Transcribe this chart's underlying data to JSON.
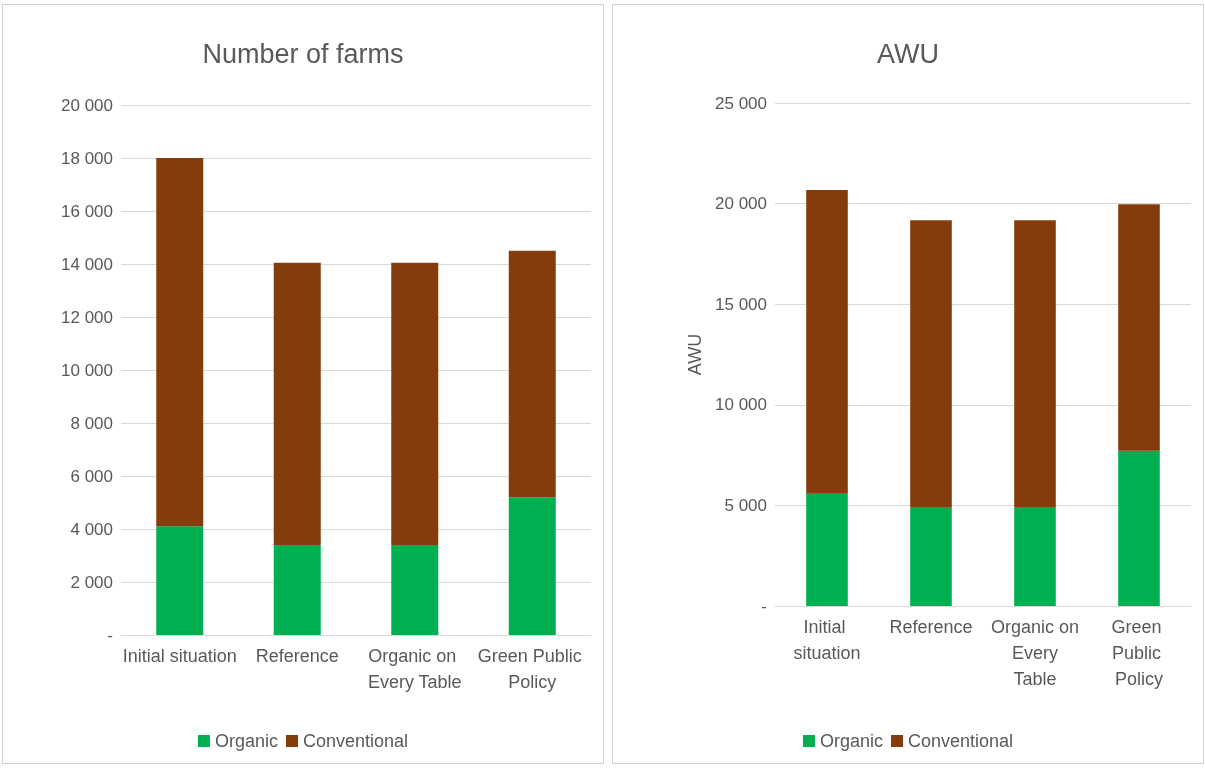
{
  "chart_data": [
    {
      "type": "bar",
      "title": "Number of farms",
      "categories": [
        "Initial situation",
        "Reference",
        "Organic on Every Table",
        "Green Public Policy"
      ],
      "stacked": true,
      "series": [
        {
          "name": "Organic",
          "color": "#00b050",
          "values": [
            4100,
            3400,
            3400,
            5200
          ]
        },
        {
          "name": "Conventional",
          "color": "#843c0c",
          "values": [
            13900,
            10650,
            10650,
            9300
          ]
        }
      ],
      "ylim": [
        0,
        20000
      ],
      "yticks": [
        {
          "value": 0,
          "label": "-"
        },
        {
          "value": 2000,
          "label": "2 000"
        },
        {
          "value": 4000,
          "label": "4 000"
        },
        {
          "value": 6000,
          "label": "6 000"
        },
        {
          "value": 8000,
          "label": "8 000"
        },
        {
          "value": 10000,
          "label": "10 000"
        },
        {
          "value": 12000,
          "label": "12 000"
        },
        {
          "value": 14000,
          "label": "14 000"
        },
        {
          "value": 16000,
          "label": "16 000"
        },
        {
          "value": 18000,
          "label": "18 000"
        },
        {
          "value": 20000,
          "label": "20 000"
        }
      ],
      "grid": "y",
      "legend": "bottom"
    },
    {
      "type": "bar",
      "title": "AWU",
      "ylabel": "AWU",
      "categories": [
        "Initial situation",
        "Reference",
        "Organic on Every Table",
        "Green Public Policy"
      ],
      "stacked": true,
      "series": [
        {
          "name": "Organic",
          "color": "#00b050",
          "values": [
            5580,
            4880,
            4880,
            7720
          ]
        },
        {
          "name": "Conventional",
          "color": "#843c0c",
          "values": [
            15090,
            14290,
            14290,
            12250
          ]
        }
      ],
      "ylim": [
        0,
        25000
      ],
      "yticks": [
        {
          "value": 0,
          "label": "-"
        },
        {
          "value": 5000,
          "label": "5 000"
        },
        {
          "value": 10000,
          "label": "10 000"
        },
        {
          "value": 15000,
          "label": "15 000"
        },
        {
          "value": 20000,
          "label": "20 000"
        },
        {
          "value": 25000,
          "label": "25 000"
        }
      ],
      "grid": "y",
      "legend": "bottom"
    }
  ]
}
